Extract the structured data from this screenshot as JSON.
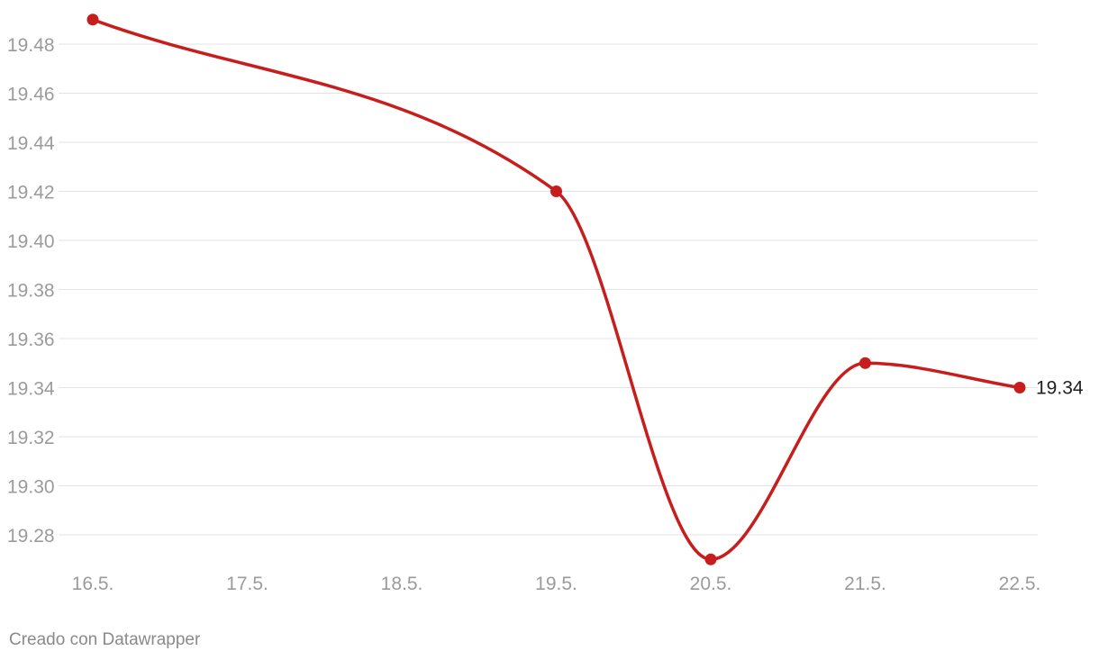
{
  "chart_data": {
    "type": "line",
    "x": [
      "16.5.",
      "17.5.",
      "18.5.",
      "19.5.",
      "20.5.",
      "21.5.",
      "22.5."
    ],
    "series": [
      {
        "points": [
          {
            "x": "16.5.",
            "y": 19.49
          },
          {
            "x": "19.5.",
            "y": 19.42
          },
          {
            "x": "20.5.",
            "y": 19.27
          },
          {
            "x": "21.5.",
            "y": 19.35
          },
          {
            "x": "22.5.",
            "y": 19.34
          }
        ],
        "color": "#c71e1d"
      }
    ],
    "y_ticks": [
      "19.48",
      "19.46",
      "19.44",
      "19.42",
      "19.40",
      "19.38",
      "19.36",
      "19.34",
      "19.32",
      "19.30",
      "19.28"
    ],
    "y_tick_values": [
      19.48,
      19.46,
      19.44,
      19.42,
      19.4,
      19.38,
      19.36,
      19.34,
      19.32,
      19.3,
      19.28
    ],
    "ylim": [
      19.26,
      19.49
    ],
    "end_label": "19.34",
    "title": "",
    "xlabel": "",
    "ylabel": "",
    "grid": true,
    "line_style": "smooth"
  },
  "footer": {
    "credit": "Creado con Datawrapper"
  }
}
